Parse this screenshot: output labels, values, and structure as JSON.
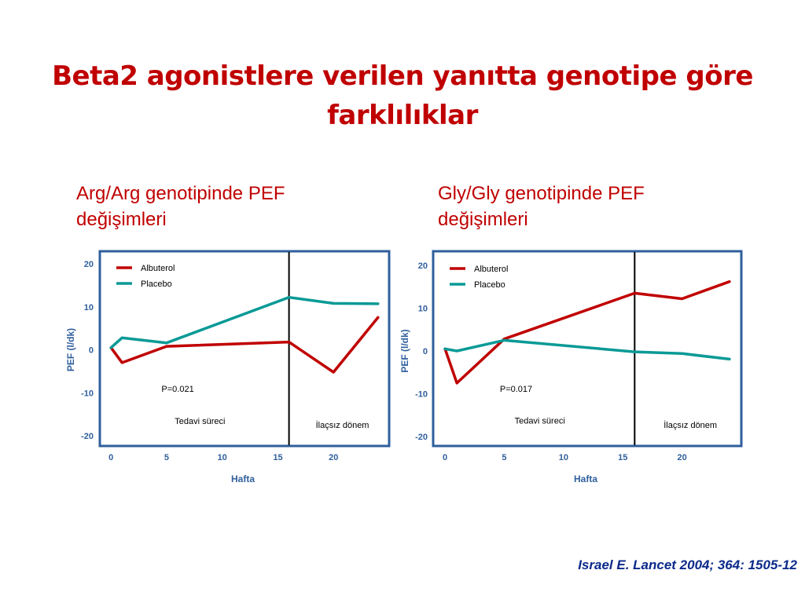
{
  "title": {
    "line1": "Beta2 agonistlere verilen yanıtta genotipe göre",
    "line2": "farklılıklar"
  },
  "panels": {
    "left": {
      "heading_line1": "Arg/Arg genotipinde PEF",
      "heading_line2": "değişimleri"
    },
    "right": {
      "heading_line1": "Gly/Gly genotipinde PEF",
      "heading_line2": "değişimleri"
    }
  },
  "citation": "Israel E. Lancet 2004; 364: 1505-12",
  "colors": {
    "albuterol": "#c00000",
    "placebo": "#0a9a96",
    "frame": "#2f5f9c",
    "axis_text": "#2f5f9c",
    "title": "#c00000"
  },
  "chart_data": [
    {
      "type": "line",
      "xlabel": "Hafta",
      "ylabel": "PEF (l/dk)",
      "xlim": [
        -1,
        25
      ],
      "ylim": [
        -20,
        20
      ],
      "xticks": [
        0,
        5,
        10,
        15,
        20
      ],
      "yticks": [
        20,
        10,
        0,
        -10,
        -20
      ],
      "divider_x": 16,
      "legend_position": "top-left",
      "series": [
        {
          "name": "Albuterol",
          "color_key": "albuterol",
          "x": [
            0,
            1,
            5,
            16,
            20,
            24
          ],
          "y": [
            0.5,
            -3,
            0.8,
            1.8,
            -5.2,
            7.5
          ]
        },
        {
          "name": "Placebo",
          "color_key": "placebo",
          "x": [
            0,
            1,
            5,
            16,
            20,
            24
          ],
          "y": [
            0.5,
            2.8,
            1.6,
            12.2,
            10.8,
            10.7
          ]
        }
      ],
      "annotations": [
        {
          "text": "P=0.021",
          "x": 6,
          "y": -9.8
        },
        {
          "text": "Tedavi süreci",
          "x": 8,
          "y": -17.3
        },
        {
          "text": "İlaçsız dönem",
          "x": 20.8,
          "y": -18.2
        }
      ]
    },
    {
      "type": "line",
      "xlabel": "Hafta",
      "ylabel": "PEF (l/dk)",
      "xlim": [
        -1,
        25
      ],
      "ylim": [
        -20,
        20
      ],
      "xticks": [
        0,
        5,
        10,
        15,
        20
      ],
      "yticks": [
        20,
        10,
        0,
        -10,
        -20
      ],
      "divider_x": 16,
      "legend_position": "top-left",
      "series": [
        {
          "name": "Albuterol",
          "color_key": "albuterol",
          "x": [
            0,
            1,
            5,
            16,
            20,
            24
          ],
          "y": [
            0.5,
            -7.5,
            2.8,
            13.5,
            12.2,
            16.2
          ]
        },
        {
          "name": "Placebo",
          "color_key": "placebo",
          "x": [
            0,
            1,
            5,
            16,
            20,
            24
          ],
          "y": [
            0.5,
            0,
            2.5,
            -0.2,
            -0.6,
            -1.9
          ]
        }
      ],
      "annotations": [
        {
          "text": "P=0.017",
          "x": 6,
          "y": -9.5
        },
        {
          "text": "Tedavi süreci",
          "x": 8,
          "y": -17
        },
        {
          "text": "İlaçsız dönem",
          "x": 20.7,
          "y": -18
        }
      ]
    }
  ]
}
